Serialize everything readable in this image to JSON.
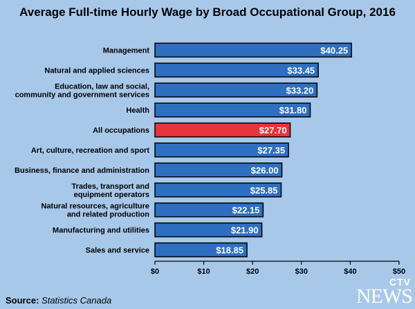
{
  "title": "Average Full-time Hourly Wage by Broad Occupational Group, 2016",
  "source": {
    "label": "Source:",
    "name": "Statistics Canada"
  },
  "logo": {
    "top": "CTV",
    "bottom": "NEWS"
  },
  "colors": {
    "bar": "#2f6fc1",
    "highlight": "#e8343a",
    "background": "#a8c8ea"
  },
  "chart_data": {
    "type": "bar",
    "orientation": "horizontal",
    "title": "Average Full-time Hourly Wage by Broad Occupational Group, 2016",
    "categories": [
      [
        "Management"
      ],
      [
        "Natural and applied sciences"
      ],
      [
        "Education, law and social,",
        "community and government services"
      ],
      [
        "Health"
      ],
      [
        "All occupations"
      ],
      [
        "Art, culture, recreation and sport"
      ],
      [
        "Business, finance and administration"
      ],
      [
        "Trades, transport and",
        "equipment operators"
      ],
      [
        "Natural resources, agriculture",
        "and related production"
      ],
      [
        "Manufacturing and utilities"
      ],
      [
        "Sales and service"
      ]
    ],
    "values": [
      40.25,
      33.45,
      33.2,
      31.8,
      27.7,
      27.35,
      26.0,
      25.85,
      22.15,
      21.9,
      18.85
    ],
    "value_labels": [
      "$40.25",
      "$33.45",
      "$33.20",
      "$31.80",
      "$27.70",
      "$27.35",
      "$26.00",
      "$25.85",
      "$22.15",
      "$21.90",
      "$18.85"
    ],
    "highlight_index": 4,
    "xlim": [
      0,
      50
    ],
    "xticks": [
      0,
      10,
      20,
      30,
      40,
      50
    ],
    "xtick_labels": [
      "$0",
      "$10",
      "$20",
      "$30",
      "$40",
      "$50"
    ],
    "xlabel": "",
    "ylabel": "",
    "grid": false,
    "legend": "none"
  }
}
